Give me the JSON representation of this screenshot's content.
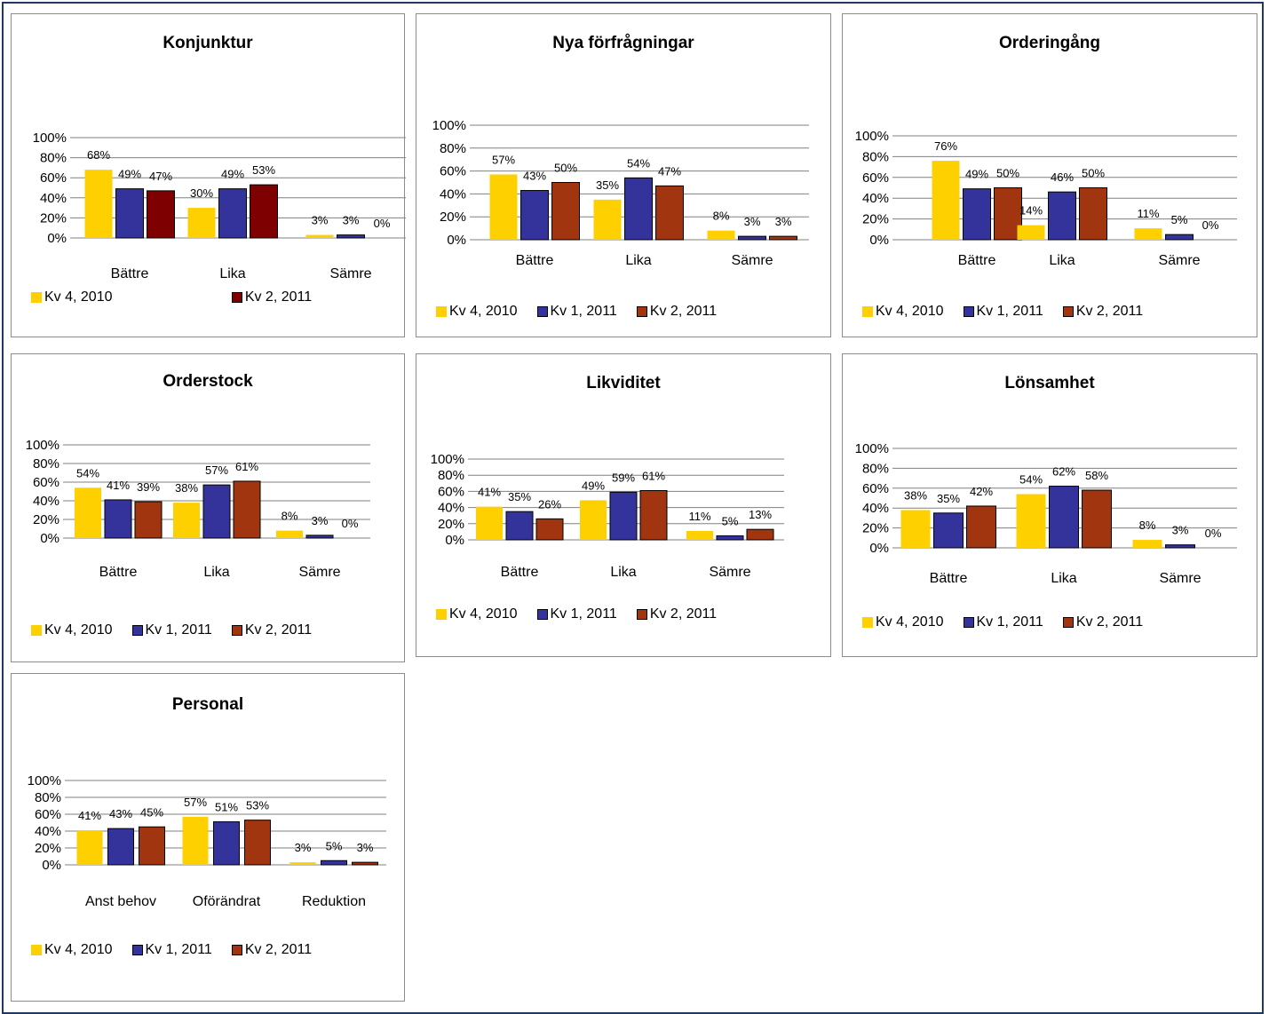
{
  "colors": {
    "kv4_2010": "#FFD000",
    "kv1_2011": "#33339B",
    "kv2_2011_a": "#7F0000",
    "kv2_2011_b": "#A0350F"
  },
  "chart_data": [
    {
      "id": "konjunktur",
      "type": "bar",
      "title": "Konjunktur",
      "categories": [
        "Bättre",
        "Lika",
        "Sämre"
      ],
      "ylim": [
        0,
        100
      ],
      "yticks": [
        "100%",
        "80%",
        "60%",
        "40%",
        "20%",
        "0%"
      ],
      "grid": true,
      "legend": "bottom",
      "series": [
        {
          "name": "Kv 4, 2010",
          "values": [
            68,
            30,
            3
          ],
          "labels": [
            "68%",
            "30%",
            "3%"
          ],
          "color": "#FFD000",
          "in_legend": true
        },
        {
          "name": "Kv 1, 2011",
          "values": [
            49,
            49,
            3
          ],
          "labels": [
            "49%",
            "49%",
            "3%"
          ],
          "color": "#33339B",
          "in_legend": false
        },
        {
          "name": "Kv 2, 2011",
          "values": [
            47,
            53,
            0
          ],
          "labels": [
            "47%",
            "53%",
            "0%"
          ],
          "color": "#7F0000",
          "in_legend": true
        }
      ]
    },
    {
      "id": "nya-forfragningar",
      "type": "bar",
      "title": "Nya förfrågningar",
      "categories": [
        "Bättre",
        "Lika",
        "Sämre"
      ],
      "ylim": [
        0,
        100
      ],
      "yticks": [
        "100%",
        "80%",
        "60%",
        "40%",
        "20%",
        "0%"
      ],
      "grid": true,
      "legend": "bottom",
      "series": [
        {
          "name": "Kv 4, 2010",
          "values": [
            57,
            35,
            8
          ],
          "labels": [
            "57%",
            "35%",
            "8%"
          ],
          "color": "#FFD000",
          "in_legend": true
        },
        {
          "name": "Kv 1, 2011",
          "values": [
            43,
            54,
            3
          ],
          "labels": [
            "43%",
            "54%",
            "3%"
          ],
          "color": "#33339B",
          "in_legend": true
        },
        {
          "name": "Kv 2, 2011",
          "values": [
            50,
            47,
            3
          ],
          "labels": [
            "50%",
            "47%",
            "3%"
          ],
          "color": "#A0350F",
          "in_legend": true
        }
      ]
    },
    {
      "id": "orderingang",
      "type": "bar",
      "title": "Orderingång",
      "categories": [
        "Bättre",
        "Lika",
        "Sämre"
      ],
      "ylim": [
        0,
        100
      ],
      "yticks": [
        "100%",
        "80%",
        "60%",
        "40%",
        "20%",
        "0%"
      ],
      "grid": true,
      "legend": "bottom",
      "series": [
        {
          "name": "Kv 4, 2010",
          "values": [
            76,
            14,
            11
          ],
          "labels": [
            "76%",
            "14%",
            "11%"
          ],
          "color": "#FFD000",
          "in_legend": true
        },
        {
          "name": "Kv 1, 2011",
          "values": [
            49,
            46,
            5
          ],
          "labels": [
            "49%",
            "46%",
            "5%"
          ],
          "color": "#33339B",
          "in_legend": true
        },
        {
          "name": "Kv 2, 2011",
          "values": [
            50,
            50,
            0
          ],
          "labels": [
            "50%",
            "50%",
            "0%"
          ],
          "color": "#A0350F",
          "in_legend": true
        }
      ]
    },
    {
      "id": "orderstock",
      "type": "bar",
      "title": "Orderstock",
      "categories": [
        "Bättre",
        "Lika",
        "Sämre"
      ],
      "ylim": [
        0,
        100
      ],
      "yticks": [
        "100%",
        "80%",
        "60%",
        "40%",
        "20%",
        "0%"
      ],
      "grid": true,
      "legend": "bottom",
      "series": [
        {
          "name": "Kv 4, 2010",
          "values": [
            54,
            38,
            8
          ],
          "labels": [
            "54%",
            "38%",
            "8%"
          ],
          "color": "#FFD000",
          "in_legend": true
        },
        {
          "name": "Kv 1, 2011",
          "values": [
            41,
            57,
            3
          ],
          "labels": [
            "41%",
            "57%",
            "3%"
          ],
          "color": "#33339B",
          "in_legend": true
        },
        {
          "name": "Kv 2, 2011",
          "values": [
            39,
            61,
            0
          ],
          "labels": [
            "39%",
            "61%",
            "0%"
          ],
          "color": "#A0350F",
          "in_legend": true
        }
      ]
    },
    {
      "id": "likviditet",
      "type": "bar",
      "title": "Likviditet",
      "categories": [
        "Bättre",
        "Lika",
        "Sämre"
      ],
      "ylim": [
        0,
        100
      ],
      "yticks": [
        "100%",
        "80%",
        "60%",
        "40%",
        "20%",
        "0%"
      ],
      "grid": true,
      "legend": "bottom",
      "series": [
        {
          "name": "Kv 4, 2010",
          "values": [
            41,
            49,
            11
          ],
          "labels": [
            "41%",
            "49%",
            "11%"
          ],
          "color": "#FFD000",
          "in_legend": true
        },
        {
          "name": "Kv 1, 2011",
          "values": [
            35,
            59,
            5
          ],
          "labels": [
            "35%",
            "59%",
            "5%"
          ],
          "color": "#33339B",
          "in_legend": true
        },
        {
          "name": "Kv 2, 2011",
          "values": [
            26,
            61,
            13
          ],
          "labels": [
            "26%",
            "61%",
            "13%"
          ],
          "color": "#A0350F",
          "in_legend": true
        }
      ]
    },
    {
      "id": "lonsamhet",
      "type": "bar",
      "title": "Lönsamhet",
      "categories": [
        "Bättre",
        "Lika",
        "Sämre"
      ],
      "ylim": [
        0,
        100
      ],
      "yticks": [
        "100%",
        "80%",
        "60%",
        "40%",
        "20%",
        "0%"
      ],
      "grid": true,
      "legend": "bottom",
      "series": [
        {
          "name": "Kv 4, 2010",
          "values": [
            38,
            54,
            8
          ],
          "labels": [
            "38%",
            "54%",
            "8%"
          ],
          "color": "#FFD000",
          "in_legend": true
        },
        {
          "name": "Kv 1, 2011",
          "values": [
            35,
            62,
            3
          ],
          "labels": [
            "35%",
            "62%",
            "3%"
          ],
          "color": "#33339B",
          "in_legend": true
        },
        {
          "name": "Kv 2, 2011",
          "values": [
            42,
            58,
            0
          ],
          "labels": [
            "42%",
            "58%",
            "0%"
          ],
          "color": "#A0350F",
          "in_legend": true
        }
      ]
    },
    {
      "id": "personal",
      "type": "bar",
      "title": "Personal",
      "categories": [
        "Anst behov",
        "Oförändrat",
        "Reduktion"
      ],
      "ylim": [
        0,
        100
      ],
      "yticks": [
        "100%",
        "80%",
        "60%",
        "40%",
        "20%",
        "0%"
      ],
      "grid": true,
      "legend": "bottom",
      "series": [
        {
          "name": "Kv 4, 2010",
          "values": [
            41,
            57,
            3
          ],
          "labels": [
            "41%",
            "57%",
            "3%"
          ],
          "color": "#FFD000",
          "in_legend": true
        },
        {
          "name": "Kv 1, 2011",
          "values": [
            43,
            51,
            5
          ],
          "labels": [
            "43%",
            "51%",
            "5%"
          ],
          "color": "#33339B",
          "in_legend": true
        },
        {
          "name": "Kv 2, 2011",
          "values": [
            45,
            53,
            3
          ],
          "labels": [
            "45%",
            "53%",
            "3%"
          ],
          "color": "#A0350F",
          "in_legend": true
        }
      ]
    }
  ]
}
